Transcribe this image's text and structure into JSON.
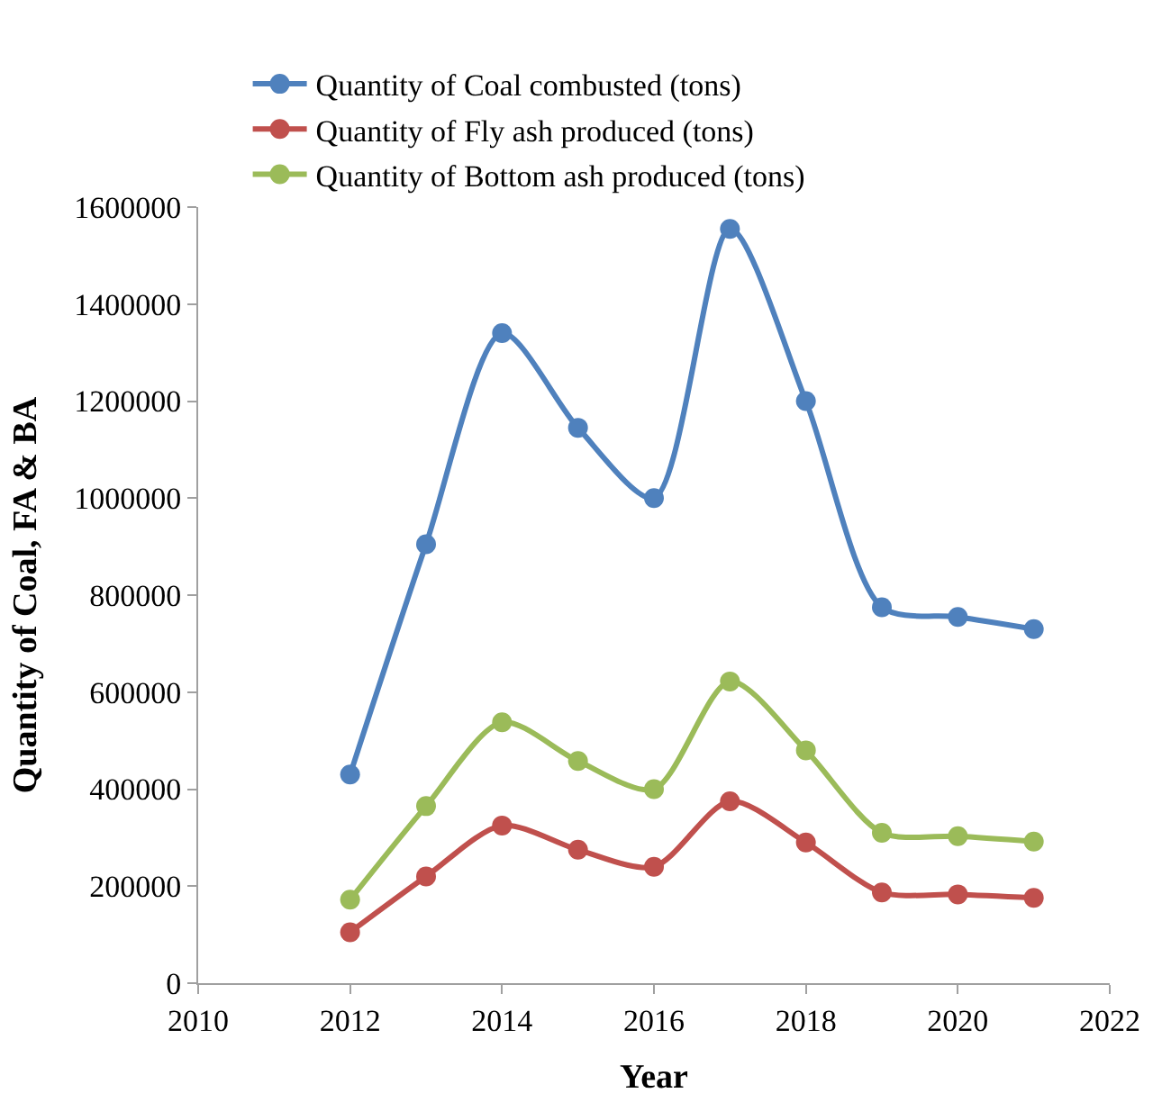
{
  "chart_data": {
    "type": "line",
    "xlabel": "Year",
    "ylabel": "Quantity of Coal, FA & BA",
    "x": [
      2012,
      2013,
      2014,
      2015,
      2016,
      2017,
      2018,
      2019,
      2020,
      2021
    ],
    "series": [
      {
        "name": "Quantity of Coal combusted (tons)",
        "color": "#4f81bd",
        "values": [
          430000,
          905000,
          1340000,
          1145000,
          1000000,
          1555000,
          1200000,
          775000,
          755000,
          730000
        ]
      },
      {
        "name": "Quantity of Fly ash produced (tons)",
        "color": "#c0504d",
        "values": [
          105000,
          220000,
          325000,
          275000,
          240000,
          375000,
          290000,
          187000,
          183000,
          176000
        ]
      },
      {
        "name": "Quantity of Bottom ash produced (tons)",
        "color": "#9bbb59",
        "values": [
          172000,
          365000,
          538000,
          458000,
          400000,
          622000,
          480000,
          310000,
          303000,
          292000
        ]
      }
    ],
    "xlim": [
      2010,
      2022
    ],
    "xticks": [
      2010,
      2012,
      2014,
      2016,
      2018,
      2020,
      2022
    ],
    "ylim": [
      0,
      1600000
    ],
    "yticks": [
      0,
      200000,
      400000,
      600000,
      800000,
      1000000,
      1200000,
      1400000,
      1600000
    ],
    "grid": false,
    "legend": "top",
    "marker": "circle",
    "line_style": "solid"
  }
}
